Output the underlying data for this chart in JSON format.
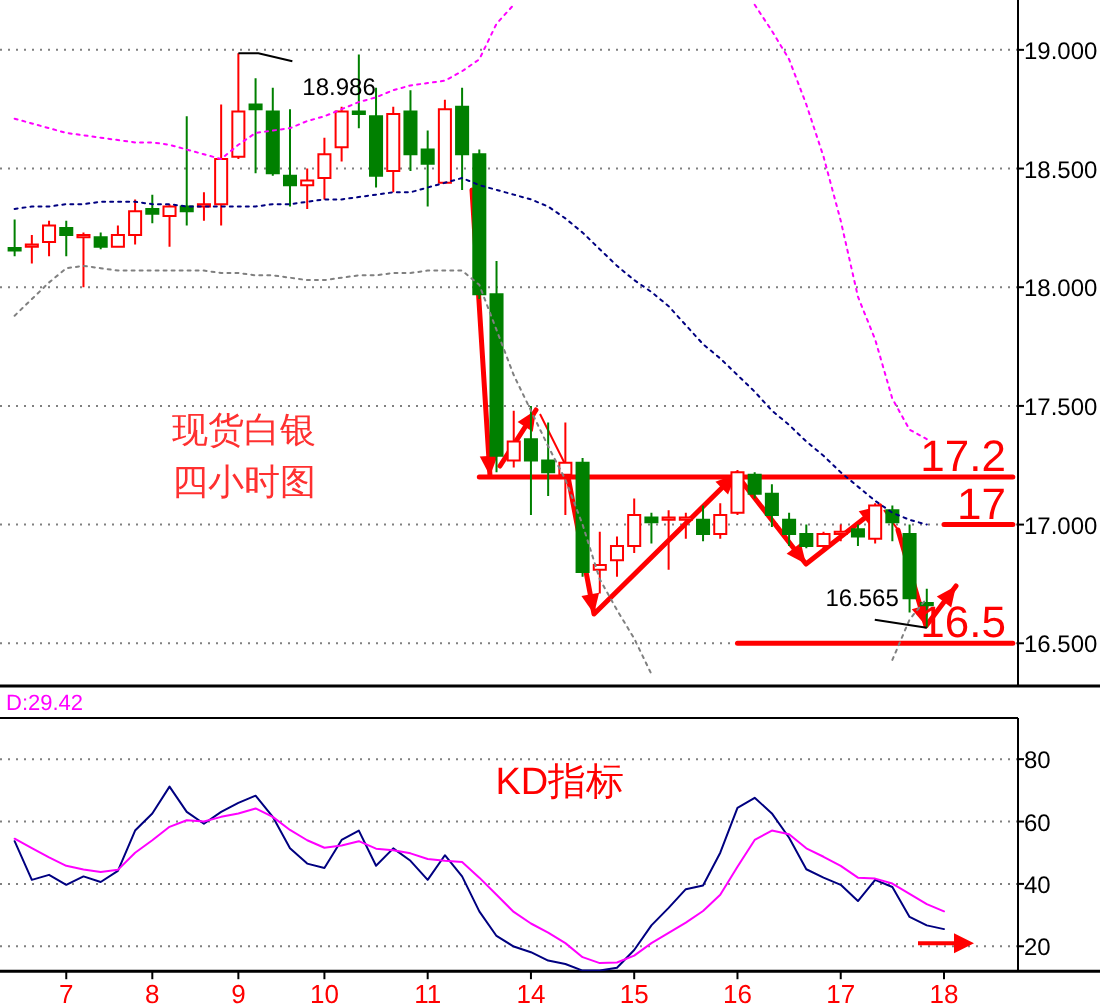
{
  "chart_data": [
    {
      "type": "candlestick",
      "ylim": [
        16.32,
        19.21
      ],
      "tick_labels": "y",
      "grid": "y",
      "yticks": [
        {
          "value": 16.5,
          "label": "16.500"
        },
        {
          "value": 17,
          "label": "17.000"
        },
        {
          "value": 17.5,
          "label": "17.500"
        },
        {
          "value": 18,
          "label": "18.000"
        },
        {
          "value": 18.5,
          "label": "18.500"
        },
        {
          "value": 19,
          "label": "19.000"
        }
      ],
      "categories": [
        null,
        null,
        null,
        null,
        null,
        null,
        null,
        null,
        null,
        null,
        null,
        null,
        null,
        null,
        null,
        null,
        null,
        null,
        null,
        null,
        null,
        null,
        null,
        null,
        null,
        null,
        null,
        null,
        null,
        null,
        null,
        null,
        null,
        null,
        null,
        null,
        null,
        null,
        null,
        null,
        null,
        null,
        null,
        null,
        null,
        null,
        null,
        null,
        null,
        null,
        null,
        null,
        null,
        null,
        null,
        null,
        null,
        null,
        null
      ],
      "ohlc": [
        [
          18.165,
          18.285,
          18.13,
          18.155
        ],
        [
          18.17,
          18.22,
          18.1,
          18.18
        ],
        [
          18.19,
          18.28,
          18.13,
          18.26
        ],
        [
          18.25,
          18.28,
          18.13,
          18.22
        ],
        [
          18.21,
          18.23,
          18.0,
          18.22
        ],
        [
          18.21,
          18.23,
          18.16,
          18.17
        ],
        [
          18.17,
          18.26,
          18.17,
          18.22
        ],
        [
          18.22,
          18.37,
          18.18,
          18.32
        ],
        [
          18.33,
          18.39,
          18.27,
          18.31
        ],
        [
          18.3,
          18.35,
          18.17,
          18.34
        ],
        [
          18.34,
          18.72,
          18.26,
          18.32
        ],
        [
          18.34,
          18.4,
          18.28,
          18.35
        ],
        [
          18.35,
          18.77,
          18.26,
          18.54
        ],
        [
          18.55,
          18.986,
          18.54,
          18.74
        ],
        [
          18.77,
          18.88,
          18.48,
          18.75
        ],
        [
          18.74,
          18.84,
          18.47,
          18.48
        ],
        [
          18.47,
          18.75,
          18.34,
          18.43
        ],
        [
          18.43,
          18.5,
          18.33,
          18.45
        ],
        [
          18.46,
          18.63,
          18.37,
          18.56
        ],
        [
          18.59,
          18.76,
          18.53,
          18.74
        ],
        [
          18.74,
          18.98,
          18.67,
          18.73
        ],
        [
          18.72,
          18.84,
          18.42,
          18.47
        ],
        [
          18.49,
          18.76,
          18.4,
          18.73
        ],
        [
          18.74,
          18.83,
          18.49,
          18.56
        ],
        [
          18.58,
          18.66,
          18.34,
          18.52
        ],
        [
          18.44,
          18.79,
          18.44,
          18.75
        ],
        [
          18.76,
          18.84,
          18.41,
          18.56
        ],
        [
          18.56,
          18.58,
          17.95,
          17.97
        ],
        [
          17.97,
          18.11,
          17.22,
          17.29
        ],
        [
          17.27,
          17.48,
          17.24,
          17.35
        ],
        [
          17.36,
          17.5,
          17.04,
          17.27
        ],
        [
          17.27,
          17.43,
          17.12,
          17.22
        ],
        [
          17.21,
          17.43,
          17.04,
          17.26
        ],
        [
          17.26,
          17.28,
          16.78,
          16.8
        ],
        [
          16.81,
          16.97,
          16.71,
          16.83
        ],
        [
          16.85,
          16.95,
          16.78,
          16.91
        ],
        [
          16.91,
          17.11,
          16.88,
          17.04
        ],
        [
          17.03,
          17.05,
          16.92,
          17.01
        ],
        [
          17.02,
          17.06,
          16.81,
          17.03
        ],
        [
          17.02,
          17.05,
          16.94,
          17.03
        ],
        [
          17.02,
          17.08,
          16.93,
          16.96
        ],
        [
          16.96,
          17.09,
          16.94,
          17.04
        ],
        [
          17.05,
          17.23,
          17.04,
          17.22
        ],
        [
          17.21,
          17.22,
          17.11,
          17.13
        ],
        [
          17.13,
          17.17,
          16.99,
          17.04
        ],
        [
          17.02,
          17.05,
          16.91,
          16.96
        ],
        [
          16.96,
          17.0,
          16.9,
          16.91
        ],
        [
          16.91,
          16.97,
          16.9,
          16.96
        ],
        [
          16.96,
          17.0,
          16.93,
          16.97
        ],
        [
          16.98,
          17.0,
          16.91,
          16.95
        ],
        [
          16.94,
          17.09,
          16.92,
          17.08
        ],
        [
          17.06,
          17.08,
          16.93,
          17.01
        ],
        [
          16.96,
          17.0,
          16.63,
          16.69
        ],
        [
          16.67,
          16.73,
          16.565,
          16.66
        ],
        null,
        null,
        null,
        null,
        null
      ],
      "colors": [
        "#008000",
        "#ff0000",
        "#ff0000",
        "#008000",
        "#ff0000",
        "#008000",
        "#ff0000",
        "#ff0000",
        "#008000",
        "#ff0000",
        "#008000",
        "#ff0000",
        "#ff0000",
        "#ff0000",
        "#008000",
        "#008000",
        "#008000",
        "#ff0000",
        "#ff0000",
        "#ff0000",
        "#008000",
        "#008000",
        "#ff0000",
        "#008000",
        "#008000",
        "#ff0000",
        "#008000",
        "#008000",
        "#008000",
        "#ff0000",
        "#008000",
        "#008000",
        "#ff0000",
        "#008000",
        "#ff0000",
        "#ff0000",
        "#ff0000",
        "#008000",
        "#ff0000",
        "#ff0000",
        "#008000",
        "#ff0000",
        "#ff0000",
        "#008000",
        "#008000",
        "#008000",
        "#008000",
        "#ff0000",
        "#ff0000",
        "#008000",
        "#ff0000",
        "#008000",
        "#008000",
        "#008000",
        null,
        null,
        null,
        null,
        null
      ],
      "series": [
        {
          "type": "line",
          "color": "#ff00ff",
          "line_style": "dotted",
          "values": [
            18.71,
            18.69,
            18.67,
            18.65,
            18.64,
            18.63,
            18.62,
            18.61,
            18.61,
            18.6,
            18.58,
            18.56,
            18.54,
            18.6,
            18.65,
            18.66,
            18.67,
            18.7,
            18.72,
            18.75,
            18.78,
            18.8,
            18.83,
            18.85,
            18.86,
            18.87,
            18.91,
            18.96,
            19.11,
            19.19,
            null,
            null,
            null,
            null,
            null,
            null,
            null,
            null,
            null,
            null,
            null,
            null,
            null,
            19.19,
            19.08,
            18.96,
            18.77,
            18.55,
            18.28,
            17.96,
            17.78,
            17.53,
            17.4,
            17.36,
            null,
            null,
            null,
            null,
            null
          ]
        },
        {
          "type": "line",
          "color": "#000080",
          "line_style": "dotted",
          "values": [
            18.33,
            18.34,
            18.34,
            18.35,
            18.35,
            18.36,
            18.36,
            18.36,
            18.35,
            18.35,
            18.34,
            18.34,
            18.34,
            18.34,
            18.34,
            18.35,
            18.35,
            18.36,
            18.37,
            18.37,
            18.38,
            18.39,
            18.4,
            18.4,
            18.42,
            18.44,
            18.46,
            18.43,
            18.41,
            18.39,
            18.37,
            18.34,
            18.29,
            18.23,
            18.16,
            18.09,
            18.03,
            17.98,
            17.92,
            17.84,
            17.76,
            17.7,
            17.63,
            17.56,
            17.48,
            17.42,
            17.35,
            17.29,
            17.22,
            17.16,
            17.1,
            17.05,
            17.02,
            17.0,
            null,
            null,
            null,
            null,
            null
          ]
        },
        {
          "type": "line",
          "color": "#808080",
          "line_style": "dotted",
          "values": [
            17.88,
            17.95,
            18.02,
            18.08,
            18.09,
            18.08,
            18.07,
            18.07,
            18.07,
            18.07,
            18.07,
            18.07,
            18.06,
            18.06,
            18.05,
            18.05,
            18.04,
            18.03,
            18.03,
            18.04,
            18.05,
            18.05,
            18.06,
            18.06,
            18.07,
            18.07,
            18.07,
            18.01,
            17.82,
            17.63,
            17.48,
            17.33,
            17.19,
            17.0,
            16.77,
            16.64,
            16.52,
            16.37,
            null,
            null,
            null,
            null,
            null,
            null,
            null,
            null,
            null,
            null,
            null,
            null,
            null,
            16.43,
            16.6,
            16.69,
            null,
            null,
            null,
            null,
            null
          ]
        },
        {
          "type": "line",
          "color": "#ff0000",
          "values": [
            null,
            null,
            null,
            null,
            null,
            null,
            null,
            null,
            null,
            null,
            null,
            null,
            null,
            null,
            null,
            null,
            null,
            null,
            null,
            null,
            null,
            null,
            null,
            null,
            null,
            null,
            null,
            17.2,
            17.2,
            17.2,
            17.2,
            17.2,
            17.2,
            17.2,
            17.2,
            17.2,
            17.2,
            17.2,
            17.2,
            17.2,
            17.2,
            17.2,
            17.2,
            17.2,
            17.2,
            17.2,
            17.2,
            17.2,
            17.2,
            17.2,
            17.2,
            17.2,
            17.2,
            17.2,
            17.2,
            17.2,
            17.2,
            17.2,
            17.2
          ]
        },
        {
          "type": "line",
          "color": "#ff0000",
          "values": [
            null,
            null,
            null,
            null,
            null,
            null,
            null,
            null,
            null,
            null,
            null,
            null,
            null,
            null,
            null,
            null,
            null,
            null,
            null,
            null,
            null,
            null,
            null,
            null,
            null,
            null,
            null,
            null,
            null,
            null,
            null,
            null,
            null,
            null,
            null,
            null,
            null,
            null,
            null,
            null,
            null,
            null,
            null,
            null,
            null,
            null,
            null,
            null,
            null,
            null,
            null,
            null,
            null,
            null,
            17,
            17,
            17,
            17,
            17
          ]
        },
        {
          "type": "line",
          "color": "#ff0000",
          "values": [
            null,
            null,
            null,
            null,
            null,
            null,
            null,
            null,
            null,
            null,
            null,
            null,
            null,
            null,
            null,
            null,
            null,
            null,
            null,
            null,
            null,
            null,
            null,
            null,
            null,
            null,
            null,
            null,
            null,
            null,
            null,
            null,
            null,
            null,
            null,
            null,
            null,
            null,
            null,
            null,
            null,
            null,
            16.5,
            16.5,
            16.5,
            16.5,
            16.5,
            16.5,
            16.5,
            16.5,
            16.5,
            16.5,
            16.5,
            16.5,
            16.5,
            16.5,
            16.5,
            16.5,
            16.5
          ]
        }
      ],
      "annotations": [
        "现货白银",
        "四小时图",
        "18.986",
        "16.565",
        {
          "text": "17.2",
          "y": 17.2
        },
        {
          "text": "17",
          "y": 17
        },
        {
          "text": "16.5",
          "y": 16.5
        }
      ]
    },
    {
      "type": "line",
      "ylim": [
        12,
        93.2
      ],
      "grid": "y",
      "yticks": [
        20,
        40,
        60,
        80
      ],
      "categories": [
        null,
        null,
        null,
        "7",
        null,
        null,
        null,
        null,
        "8",
        null,
        null,
        null,
        null,
        "9",
        null,
        null,
        null,
        null,
        "10",
        null,
        null,
        null,
        null,
        null,
        "11",
        null,
        null,
        null,
        null,
        null,
        "14",
        null,
        null,
        null,
        null,
        null,
        "15",
        null,
        null,
        null,
        null,
        null,
        "16",
        null,
        null,
        null,
        null,
        null,
        "17",
        null,
        null,
        null,
        null,
        null,
        "18",
        null,
        null,
        null,
        null
      ],
      "series": [
        {
          "color": "#000080",
          "values": [
            53.7,
            41.3,
            42.9,
            39.7,
            42.4,
            40.6,
            44.2,
            57.1,
            62.6,
            71.2,
            63.1,
            59.3,
            63.1,
            66.0,
            68.3,
            61.5,
            51.4,
            46.5,
            45.1,
            54.1,
            57.1,
            45.8,
            51.4,
            47.4,
            41.3,
            49.2,
            42.4,
            31.2,
            23.3,
            19.9,
            18.1,
            15.4,
            14.3,
            12.2,
            12.2,
            13.1,
            18.8,
            26.7,
            32.3,
            38.3,
            39.5,
            50,
            64.4,
            67.6,
            62.6,
            54.8,
            44.7,
            42.0,
            39.7,
            34.5,
            41.3,
            39.0,
            29.4,
            26.7,
            25.5,
            null,
            null,
            null,
            null
          ]
        },
        {
          "color": "#ff00ff",
          "values": [
            54.5,
            51.5,
            48.5,
            45.8,
            44.6,
            43.8,
            44.5,
            50,
            54,
            58.3,
            60.4,
            60.0,
            61.5,
            62.6,
            64.2,
            61.5,
            57.3,
            54,
            51.6,
            52.3,
            53.7,
            51.3,
            50.8,
            49.8,
            48,
            47.4,
            47,
            42,
            36.5,
            31,
            27.3,
            24.4,
            21,
            16.5,
            14.6,
            14.8,
            17,
            21,
            24.3,
            27.6,
            31.3,
            36.5,
            45.5,
            54.1,
            57.1,
            55.9,
            51.4,
            48.7,
            45.8,
            42.0,
            41.7,
            40.1,
            36.8,
            33.5,
            31.2,
            null,
            null,
            null,
            null
          ]
        }
      ],
      "annotations": [
        "D:29.42",
        "KD指标"
      ]
    }
  ]
}
